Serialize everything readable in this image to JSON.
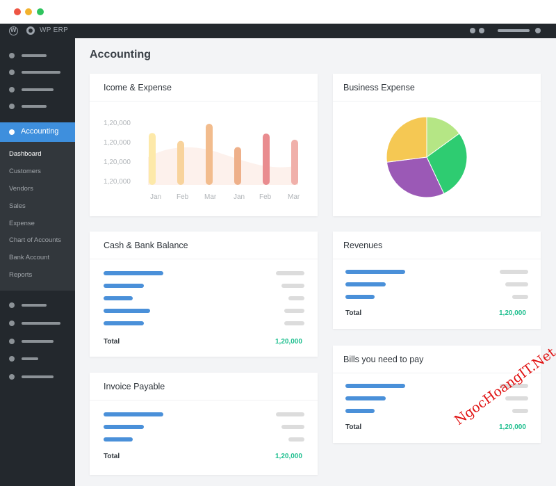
{
  "admin_bar": {
    "site_name": "WP ERP"
  },
  "sidebar": {
    "active_menu": "Accounting",
    "submenu": [
      "Dashboard",
      "Customers",
      "Vendors",
      "Sales",
      "Expense",
      "Chart of Accounts",
      "Bank Account",
      "Reports"
    ],
    "current_submenu": "Dashboard"
  },
  "page": {
    "title": "Accounting"
  },
  "income_expense": {
    "title": "Icome & Expense",
    "chart_data": {
      "type": "bar",
      "categories": [
        "Jan",
        "Feb",
        "Mar",
        "Jan",
        "Feb",
        "Mar"
      ],
      "y_tick_labels": [
        "1,20,000",
        "1,20,000",
        "1,20,000",
        "1,20,000"
      ],
      "values": [
        0.85,
        0.72,
        1.0,
        0.62,
        0.84,
        0.74
      ],
      "colors": [
        "#fde9a9",
        "#f8d39c",
        "#f2bc8d",
        "#eeb08a",
        "#e98c8f",
        "#f0b0aa"
      ]
    }
  },
  "business_expense": {
    "title": "Business Expense",
    "chart_data": {
      "type": "pie",
      "values": [
        15,
        28,
        30,
        27
      ],
      "colors": [
        "#b5e685",
        "#2ecc71",
        "#9b59b6",
        "#f5c853"
      ]
    }
  },
  "cash_bank": {
    "title": "Cash & Bank Balance",
    "total_label": "Total",
    "total_value": "1,20,000"
  },
  "revenues": {
    "title": "Revenues",
    "total_label": "Total",
    "total_value": "1,20,000"
  },
  "invoice_payable": {
    "title": "Invoice Payable",
    "total_label": "Total",
    "total_value": "1,20,000"
  },
  "bills": {
    "title": "Bills you need to pay",
    "total_label": "Total",
    "total_value": "1,20,000"
  },
  "watermark": "NgocHoangIT.Net"
}
